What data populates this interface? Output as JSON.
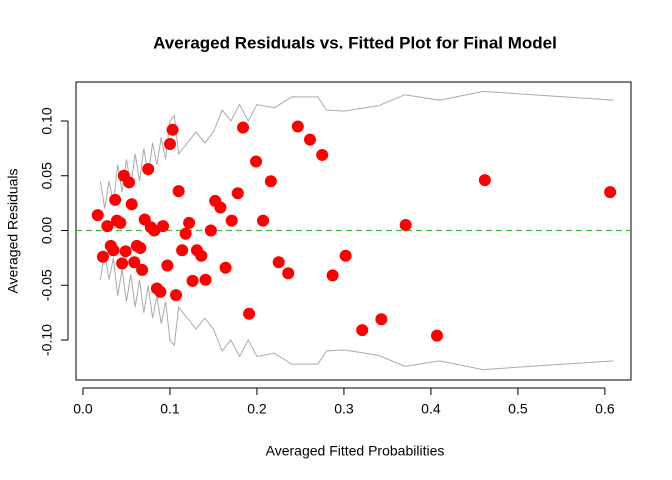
{
  "chart_data": {
    "type": "scatter",
    "title": "Averaged Residuals vs. Fitted Plot for Final Model",
    "xlabel": "Averaged Fitted Probabilities",
    "ylabel": "Averaged Residuals",
    "xlim": [
      -0.008,
      0.63
    ],
    "ylim": [
      -0.1365,
      0.1356
    ],
    "xticks": [
      {
        "value": 0,
        "label": "0.0"
      },
      0.1,
      0.2,
      0.3,
      0.4,
      0.5,
      0.6
    ],
    "yticks": [
      {
        "value": -0.1,
        "label": "-0.10"
      },
      -0.05,
      {
        "value": 0,
        "label": "0.00"
      },
      0.05,
      {
        "value": 0.1,
        "label": "0.10"
      }
    ],
    "points": {
      "color": "#ff0000",
      "x": [
        0.017,
        0.023,
        0.028,
        0.032,
        0.035,
        0.037,
        0.039,
        0.043,
        0.045,
        0.047,
        0.049,
        0.053,
        0.056,
        0.059,
        0.062,
        0.066,
        0.068,
        0.071,
        0.075,
        0.078,
        0.082,
        0.085,
        0.089,
        0.092,
        0.097,
        0.1,
        0.103,
        0.107,
        0.11,
        0.114,
        0.118,
        0.122,
        0.126,
        0.131,
        0.136,
        0.141,
        0.147,
        0.152,
        0.158,
        0.164,
        0.171,
        0.178,
        0.184,
        0.191,
        0.199,
        0.207,
        0.216,
        0.225,
        0.236,
        0.247,
        0.261,
        0.275,
        0.287,
        0.302,
        0.321,
        0.343,
        0.371,
        0.407,
        0.462,
        0.606
      ],
      "values": [
        0.014,
        -0.024,
        0.004,
        -0.014,
        -0.018,
        0.028,
        0.009,
        0.007,
        -0.03,
        0.05,
        -0.019,
        0.044,
        0.024,
        -0.029,
        -0.014,
        -0.016,
        -0.036,
        0.01,
        0.056,
        0.003,
        0.0,
        -0.053,
        -0.056,
        0.004,
        -0.032,
        0.079,
        0.092,
        -0.059,
        0.036,
        -0.018,
        -0.003,
        0.007,
        -0.046,
        -0.018,
        -0.023,
        -0.045,
        0.0,
        0.027,
        0.021,
        -0.034,
        0.009,
        0.034,
        0.094,
        -0.076,
        0.063,
        0.009,
        0.045,
        -0.029,
        -0.039,
        0.095,
        0.083,
        0.069,
        -0.041,
        -0.023,
        -0.091,
        -0.081,
        0.005,
        -0.096,
        0.046,
        0.035
      ]
    },
    "bands": [
      {
        "color": "#aaaaaa",
        "x": [
          0.02,
          0.025,
          0.03,
          0.035,
          0.04,
          0.045,
          0.05,
          0.055,
          0.06,
          0.065,
          0.07,
          0.075,
          0.08,
          0.085,
          0.09,
          0.095,
          0.1,
          0.105,
          0.11,
          0.12,
          0.13,
          0.14,
          0.15,
          0.16,
          0.17,
          0.18,
          0.19,
          0.2,
          0.22,
          0.24,
          0.27,
          0.28,
          0.3,
          0.34,
          0.37,
          0.41,
          0.46,
          0.61
        ],
        "values": [
          0.045,
          0.02,
          0.045,
          0.025,
          0.06,
          0.035,
          0.065,
          0.04,
          0.07,
          0.045,
          0.075,
          0.05,
          0.08,
          0.06,
          0.085,
          0.065,
          0.1,
          0.105,
          0.07,
          0.08,
          0.09,
          0.08,
          0.09,
          0.11,
          0.1,
          0.115,
          0.1,
          0.115,
          0.112,
          0.122,
          0.122,
          0.11,
          0.109,
          0.114,
          0.124,
          0.119,
          0.127,
          0.119
        ]
      },
      {
        "color": "#aaaaaa",
        "x": [
          0.02,
          0.025,
          0.03,
          0.035,
          0.04,
          0.045,
          0.05,
          0.055,
          0.06,
          0.065,
          0.07,
          0.075,
          0.08,
          0.085,
          0.09,
          0.095,
          0.1,
          0.105,
          0.11,
          0.12,
          0.13,
          0.14,
          0.15,
          0.16,
          0.17,
          0.18,
          0.19,
          0.2,
          0.22,
          0.24,
          0.27,
          0.28,
          0.3,
          0.34,
          0.37,
          0.41,
          0.46,
          0.61
        ],
        "values": [
          -0.045,
          -0.02,
          -0.045,
          -0.025,
          -0.06,
          -0.035,
          -0.065,
          -0.04,
          -0.07,
          -0.045,
          -0.075,
          -0.05,
          -0.08,
          -0.06,
          -0.085,
          -0.065,
          -0.1,
          -0.105,
          -0.07,
          -0.08,
          -0.09,
          -0.08,
          -0.09,
          -0.11,
          -0.1,
          -0.115,
          -0.1,
          -0.115,
          -0.112,
          -0.122,
          -0.122,
          -0.11,
          -0.109,
          -0.114,
          -0.124,
          -0.119,
          -0.127,
          -0.119
        ]
      }
    ],
    "reference_line": {
      "value": 0,
      "color": "#3fbf3f",
      "dashed": true
    }
  }
}
